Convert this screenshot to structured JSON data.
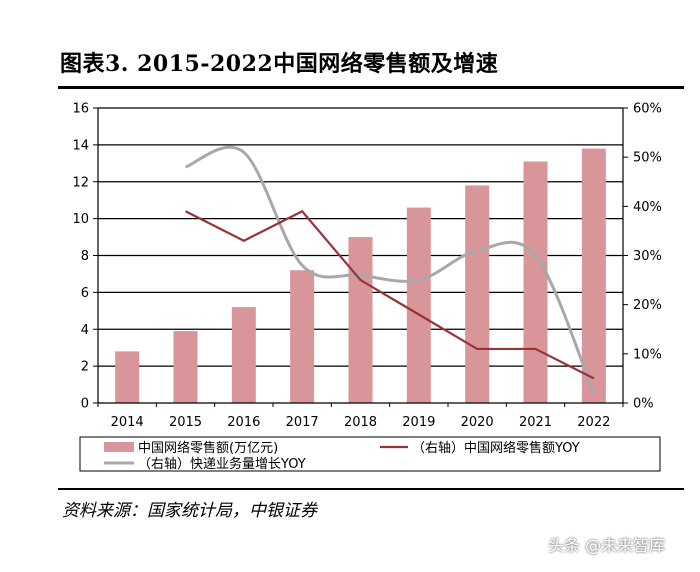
{
  "title": "图表3. 2015-2022中国网络零售额及增速",
  "source": "资料来源：国家统计局，中银证券",
  "watermark": "头条 @未来智库",
  "colors": {
    "bar": "#d9969a",
    "red_line": "#9b3336",
    "gray_line": "#a8a8a8"
  },
  "chart_data": {
    "type": "bar",
    "categories": [
      "2014",
      "2015",
      "2016",
      "2017",
      "2018",
      "2019",
      "2020",
      "2021",
      "2022"
    ],
    "series": [
      {
        "name": "中国网络零售额(万亿元)",
        "type": "bar",
        "axis": "left",
        "values": [
          2.8,
          3.9,
          5.2,
          7.2,
          9.0,
          10.6,
          11.8,
          13.1,
          13.8
        ]
      },
      {
        "name": "（右轴）中国网络零售额YOY",
        "type": "line",
        "axis": "right",
        "values": [
          null,
          0.39,
          0.33,
          0.39,
          0.25,
          0.18,
          0.11,
          0.11,
          0.05
        ]
      },
      {
        "name": "（右轴）快递业务量增长YOY",
        "type": "line",
        "axis": "right",
        "smooth": true,
        "values": [
          null,
          0.48,
          0.51,
          0.28,
          0.26,
          0.25,
          0.31,
          0.3,
          0.02
        ]
      }
    ],
    "left_axis": {
      "ylim": [
        0,
        16
      ],
      "ticks": [
        "0",
        "2",
        "4",
        "6",
        "8",
        "10",
        "12",
        "14",
        "16"
      ]
    },
    "right_axis": {
      "ylim": [
        0,
        0.6
      ],
      "ticks": [
        "0%",
        "10%",
        "20%",
        "30%",
        "40%",
        "50%",
        "60%"
      ]
    },
    "grid": true,
    "legend_position": "bottom"
  }
}
